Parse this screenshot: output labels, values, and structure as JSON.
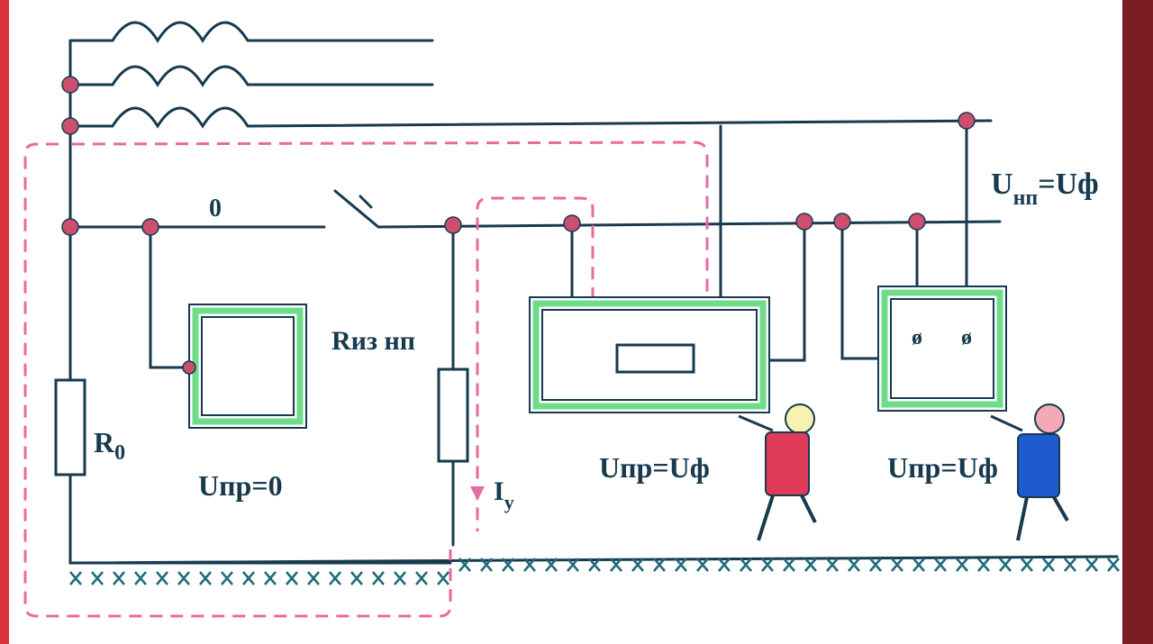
{
  "colors": {
    "wire": "#173a4f",
    "node": "#cc4f6e",
    "current_path": "#e86aa2",
    "enclosure_green": "#6fdc8a",
    "border_red": "#d8333d",
    "ground_hatch": "#1c6a7a",
    "person1_shirt": "#e03a5a",
    "person2_shirt": "#1f5bd0"
  },
  "labels": {
    "neutral": "0",
    "u_np_main": "U",
    "u_np_sub": "нп",
    "u_np_rest": "=Uф",
    "r_iz_np": "Rиз нп",
    "r0_main": "R",
    "r0_sub": "0",
    "u_pr_zero": "Uпр=0",
    "u_pr_uf_1": "Uпр=Uф",
    "u_pr_uf_2": "Uпр=Uф",
    "i_y_main": "I",
    "i_y_sub": "у"
  },
  "icons": {
    "terminal_1": "ø",
    "terminal_2": "ø"
  },
  "figures": [
    "person-touching-enclosure-red",
    "person-touching-enclosure-blue"
  ]
}
